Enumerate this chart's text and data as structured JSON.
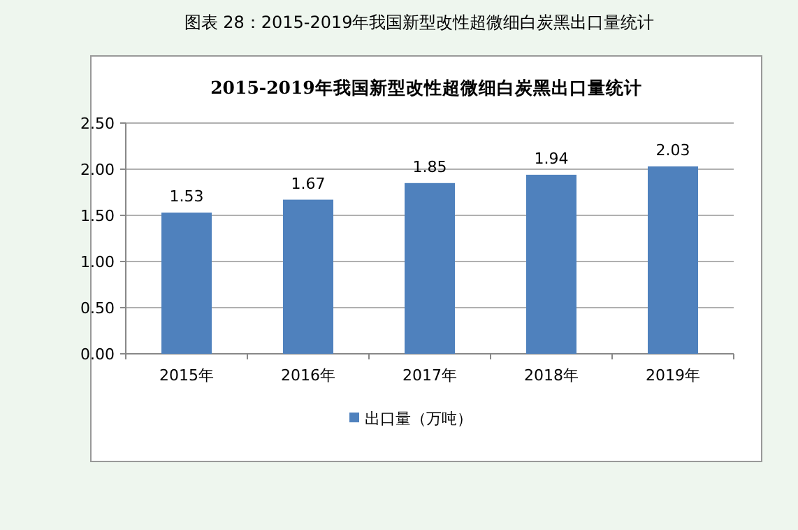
{
  "chart_data": {
    "type": "bar",
    "title": "图表 28：2015-2019年我国新型改性超微细白炭黑出口量统计",
    "subtitle": "2015-2019年我国新型改性超微细白炭黑出口量统计",
    "categories": [
      "2015年",
      "2016年",
      "2017年",
      "2018年",
      "2019年"
    ],
    "series": [
      {
        "name": "出口量（万吨）",
        "color": "#4f81bd",
        "values": [
          1.53,
          1.67,
          1.85,
          1.94,
          2.03
        ]
      }
    ],
    "ylim": [
      0,
      2.5
    ],
    "yticks": [
      {
        "value": 0,
        "label": "0.00"
      },
      {
        "value": 0.5,
        "label": "0.50"
      },
      {
        "value": 1,
        "label": "1.00"
      },
      {
        "value": 1.5,
        "label": "1.50"
      },
      {
        "value": 2,
        "label": "2.00"
      },
      {
        "value": 2.5,
        "label": "2.50"
      }
    ],
    "grid": "y",
    "data_labels": true,
    "legend": "bottom"
  }
}
